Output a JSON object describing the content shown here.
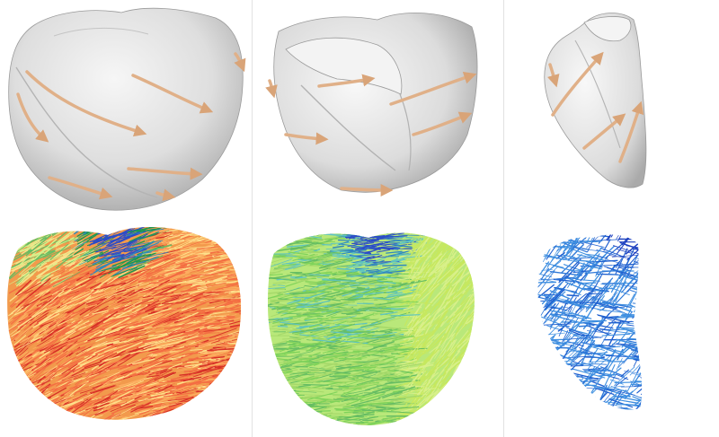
{
  "figure": {
    "panels": [
      {
        "id": "full-heart",
        "surface_color": "#e4e4e4",
        "fiber_palette": [
          "#d73027",
          "#f46d43",
          "#fdae61",
          "#fee08b",
          "#d9ef8b",
          "#66bd63",
          "#1a9850",
          "#3288bd",
          "#2b4cc8"
        ]
      },
      {
        "id": "cut-heart",
        "surface_color": "#e6e6e6",
        "fiber_palette": [
          "#a6d96a",
          "#7fd35a",
          "#c7e85e",
          "#66bd63",
          "#5fc4c0",
          "#3288bd",
          "#2b4cc8"
        ]
      },
      {
        "id": "septum-slice",
        "surface_color": "#e8e8e8",
        "fiber_palette": [
          "#3f8fe0",
          "#2f78d8",
          "#1f5fcf",
          "#1c3fbf"
        ]
      }
    ],
    "arrow_color": "#e0b088",
    "background": "#ffffff",
    "divider_color": "#e2e2e2"
  }
}
